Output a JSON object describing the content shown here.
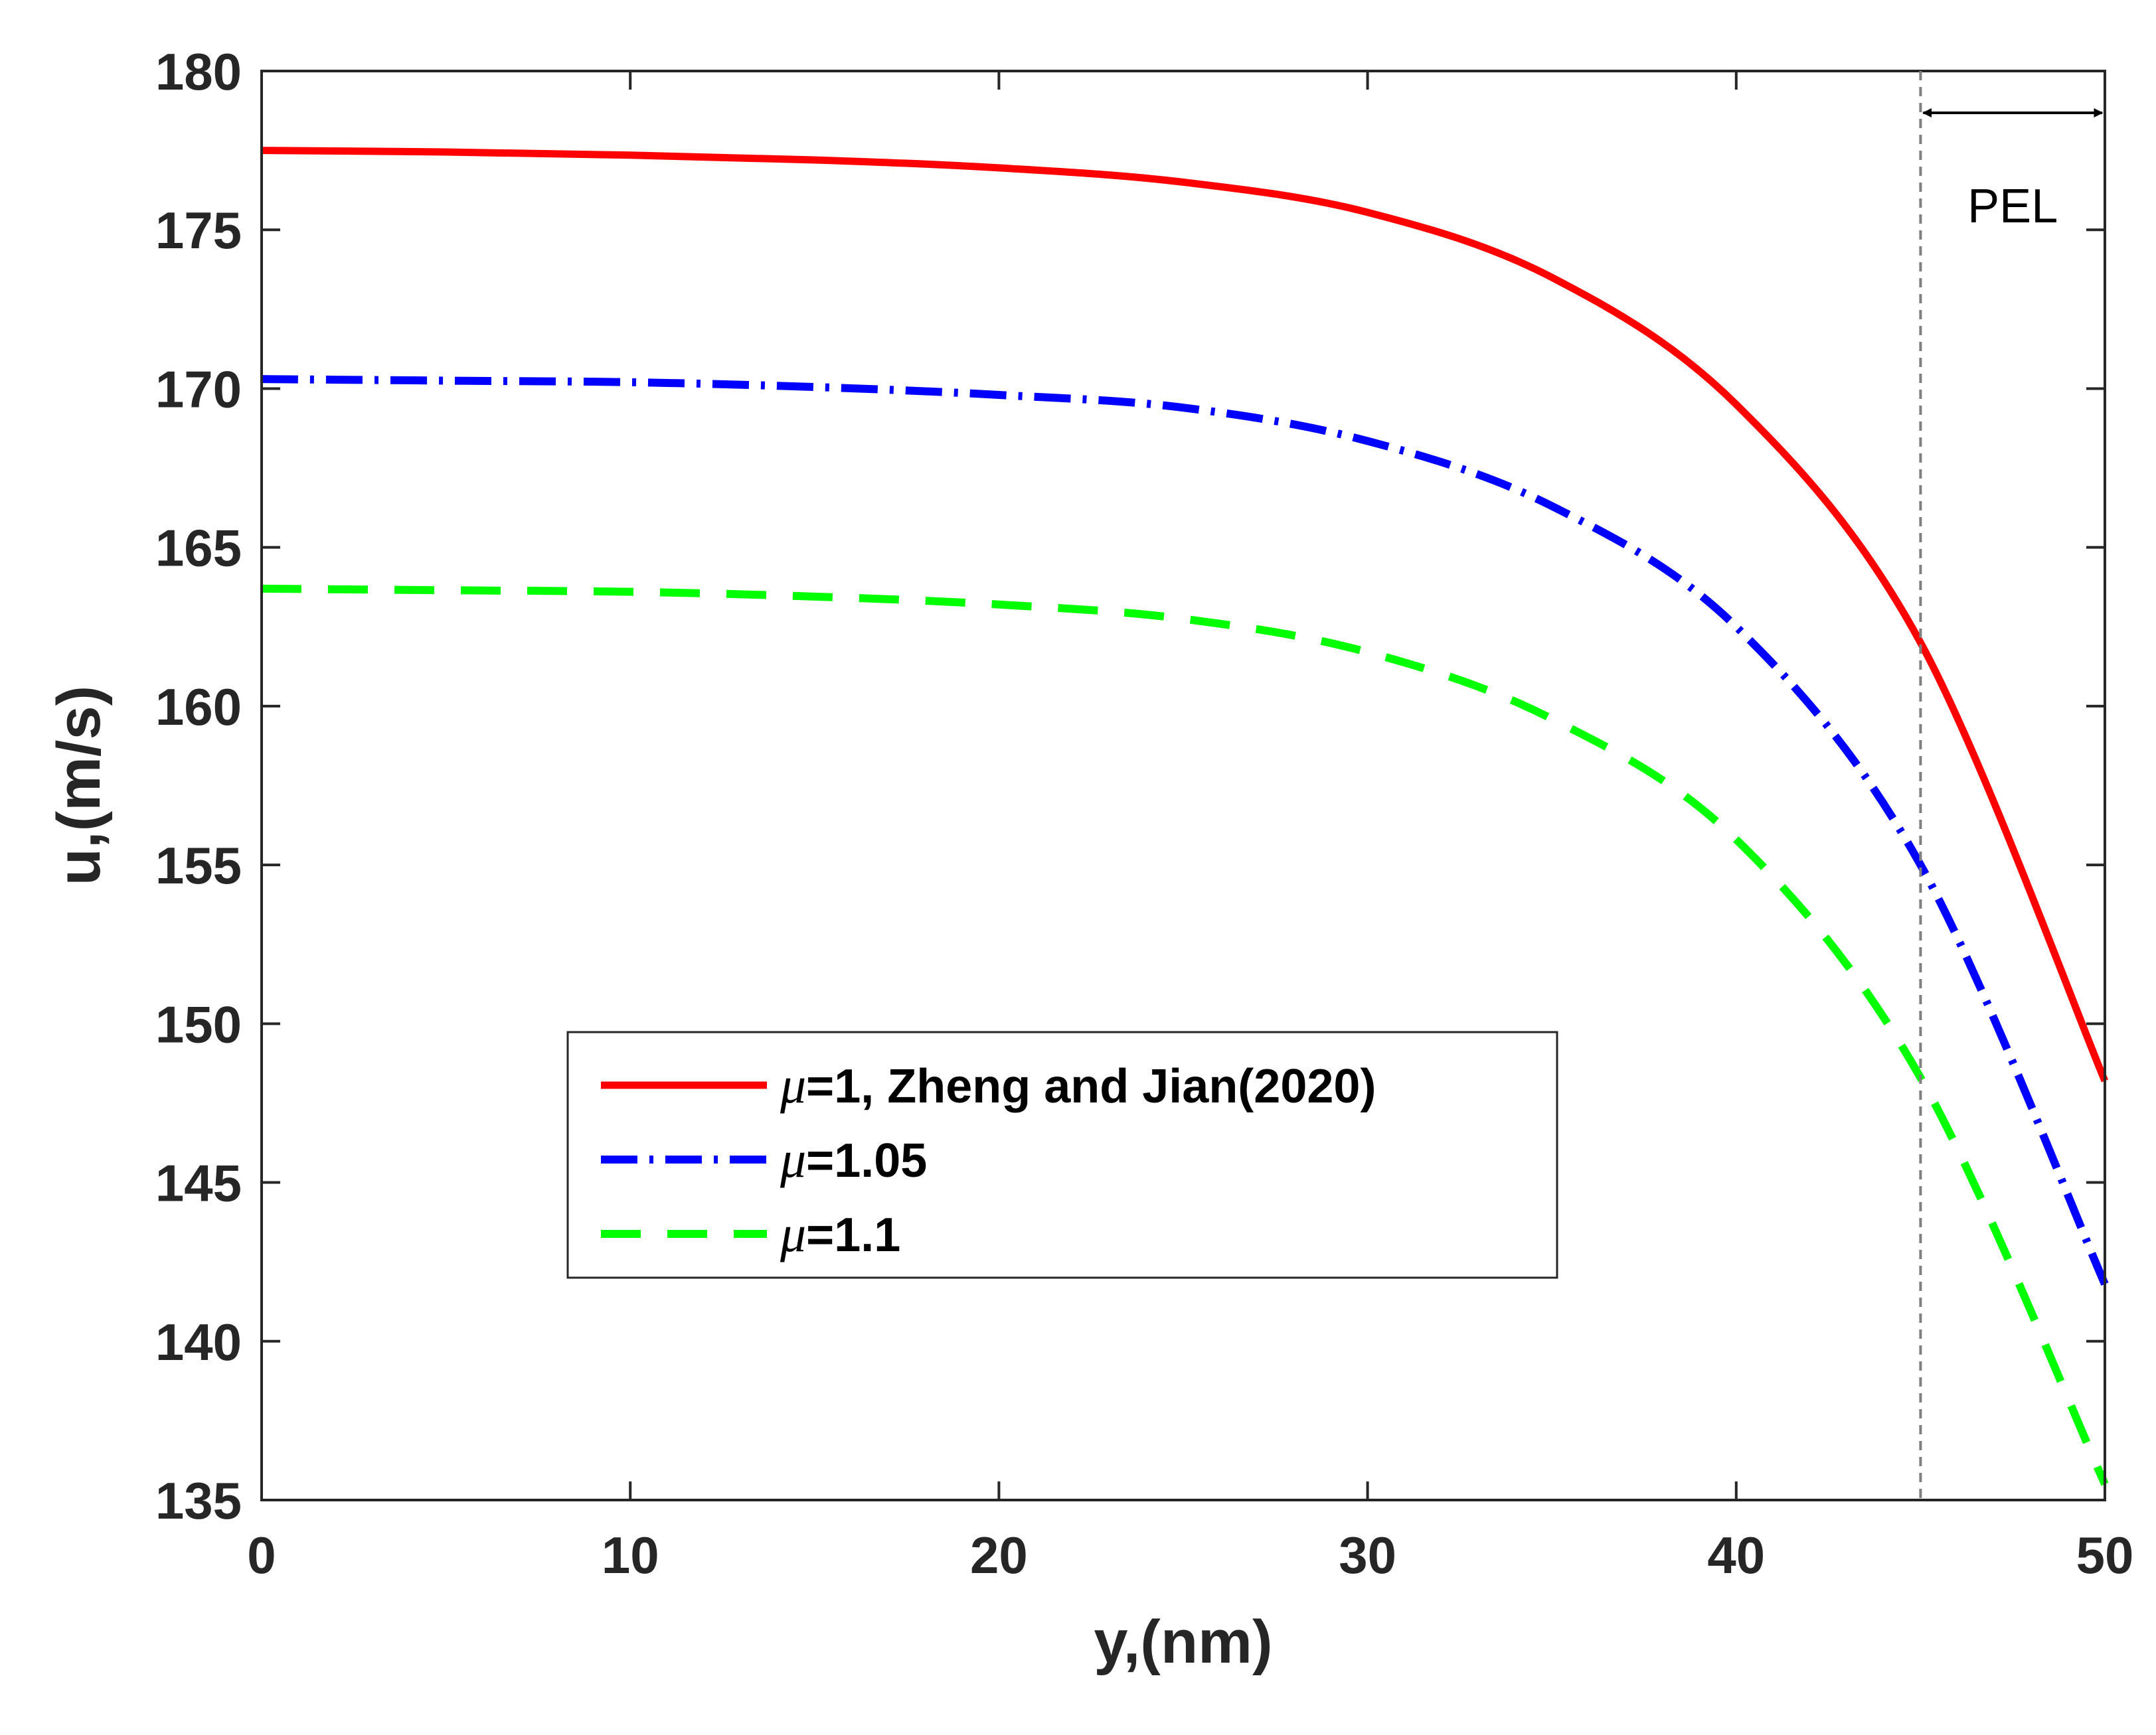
{
  "chart_data": {
    "type": "line",
    "xlabel": "y,(nm)",
    "ylabel": "u,(m/s)",
    "xlim": [
      0,
      50
    ],
    "ylim": [
      135,
      180
    ],
    "xticks": [
      0,
      10,
      20,
      30,
      40,
      50
    ],
    "yticks": [
      135,
      140,
      145,
      150,
      155,
      160,
      165,
      170,
      175,
      180
    ],
    "x": [
      0,
      5,
      10,
      15,
      20,
      25,
      30,
      35,
      40,
      45,
      50
    ],
    "series": [
      {
        "name": "μ=1,  Zheng and Jian(2020)",
        "mu_symbol": "μ",
        "label_rest": "=1,  Zheng and Jian(2020)",
        "color": "#ff0000",
        "style": "solid",
        "values": [
          177.5,
          177.45,
          177.35,
          177.2,
          176.95,
          176.5,
          175.55,
          173.5,
          169.5,
          162.0,
          148.2
        ]
      },
      {
        "name": "μ=1.05",
        "mu_symbol": "μ",
        "label_rest": "=1.05",
        "color": "#0000ff",
        "style": "dash-dot",
        "values": [
          170.3,
          170.25,
          170.2,
          170.05,
          169.8,
          169.4,
          168.35,
          166.3,
          162.5,
          155.0,
          141.8
        ]
      },
      {
        "name": "μ=1.1",
        "mu_symbol": "μ",
        "label_rest": "=1.1",
        "color": "#00ff00",
        "style": "dashed",
        "values": [
          163.7,
          163.65,
          163.6,
          163.45,
          163.2,
          162.75,
          161.7,
          159.6,
          155.8,
          148.3,
          135.5
        ]
      }
    ],
    "annotations": {
      "pel_label": "PEL",
      "pel_x_start": 45,
      "pel_x_end": 50
    },
    "legend_position": "lower-left-center"
  }
}
